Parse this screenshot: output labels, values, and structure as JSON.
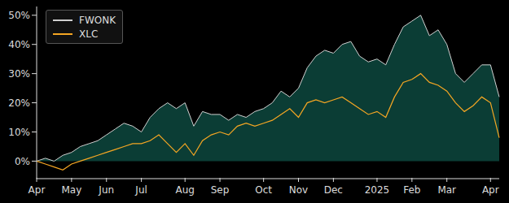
{
  "chart_data": {
    "type": "line",
    "categories": [
      "Apr",
      null,
      null,
      null,
      "May",
      null,
      null,
      null,
      "Jun",
      null,
      null,
      null,
      "Jul",
      null,
      null,
      null,
      null,
      "Aug",
      null,
      null,
      null,
      "Sep",
      null,
      null,
      null,
      null,
      "Oct",
      null,
      null,
      null,
      "Nov",
      null,
      null,
      null,
      "Dec",
      null,
      null,
      null,
      null,
      "2025",
      null,
      null,
      null,
      "Feb",
      null,
      null,
      null,
      "Mar",
      null,
      null,
      null,
      null,
      "Apr",
      null
    ],
    "series": [
      {
        "name": "FWONK",
        "type": "area",
        "color": "#d0d0d0",
        "values": [
          0,
          1,
          0,
          2,
          3,
          5,
          6,
          7,
          9,
          11,
          13,
          12,
          10,
          15,
          18,
          20,
          18,
          20,
          12,
          17,
          16,
          16,
          14,
          16,
          15,
          17,
          18,
          20,
          24,
          22,
          25,
          32,
          36,
          38,
          37,
          40,
          41,
          36,
          34,
          35,
          33,
          40,
          46,
          48,
          50,
          43,
          45,
          40,
          30,
          27,
          30,
          33,
          33,
          22
        ]
      },
      {
        "name": "XLC",
        "type": "line",
        "color": "#f5a623",
        "values": [
          0,
          -1,
          -2,
          -3,
          -1,
          0,
          1,
          2,
          3,
          4,
          5,
          6,
          6,
          7,
          9,
          6,
          3,
          6,
          2,
          7,
          9,
          10,
          9,
          12,
          13,
          12,
          13,
          14,
          16,
          18,
          15,
          20,
          21,
          20,
          21,
          22,
          20,
          18,
          16,
          17,
          15,
          22,
          27,
          28,
          30,
          27,
          26,
          24,
          20,
          17,
          19,
          22,
          20,
          8
        ]
      }
    ],
    "ylim": [
      -6,
      53
    ],
    "yticks": [
      {
        "value": 0,
        "label": "0%"
      },
      {
        "value": 10,
        "label": "10%"
      },
      {
        "value": 20,
        "label": "20%"
      },
      {
        "value": 30,
        "label": "30%"
      },
      {
        "value": 40,
        "label": "40%"
      },
      {
        "value": 50,
        "label": "50%"
      }
    ],
    "grid": false,
    "legend": "upper left"
  }
}
